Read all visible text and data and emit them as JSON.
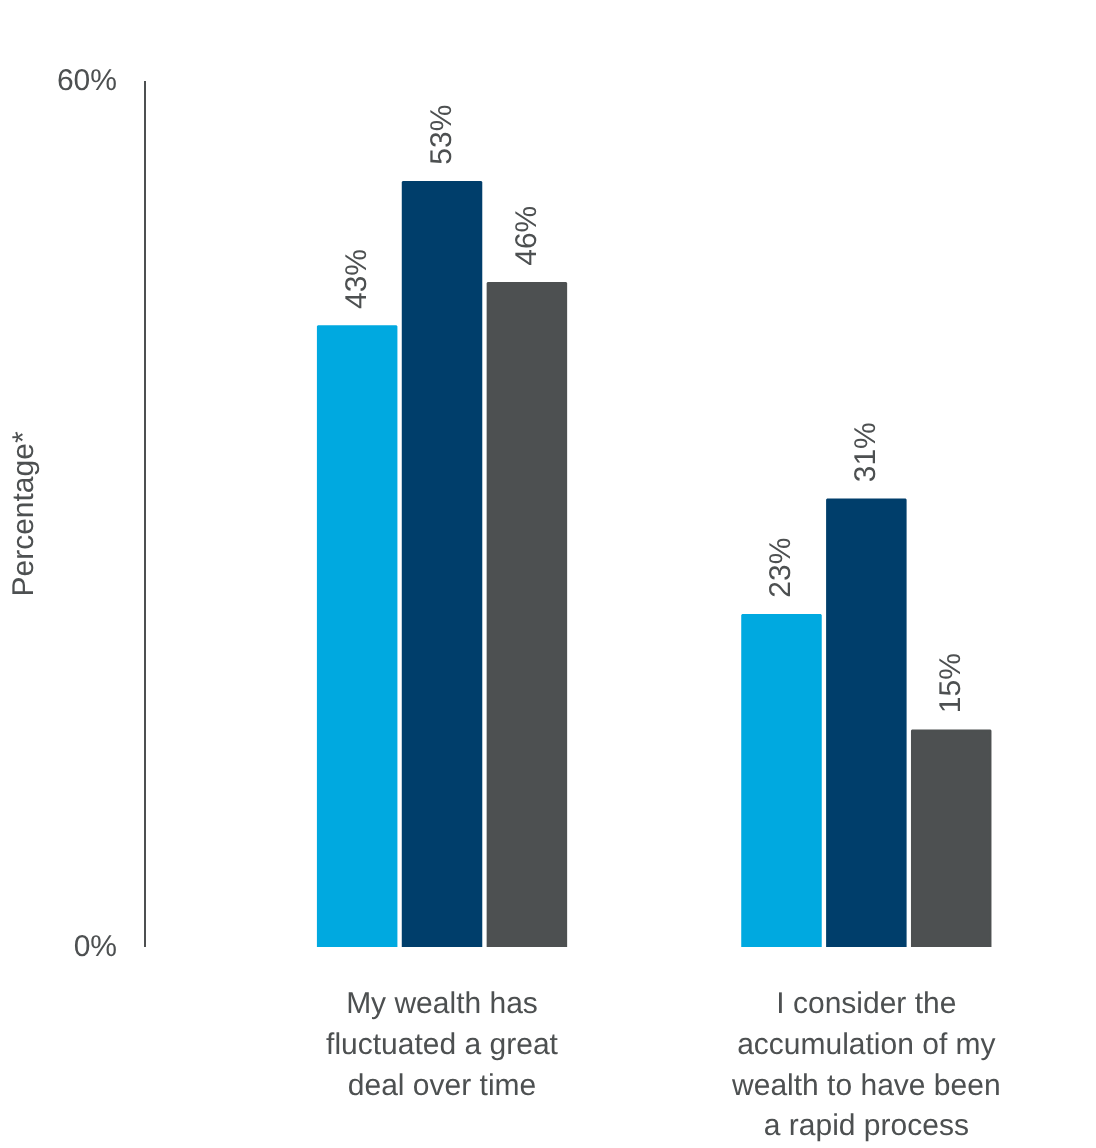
{
  "chart_data": {
    "type": "bar",
    "ylabel": "Percentage*",
    "categories": [
      "My wealth has fluctuated a great deal over time",
      "I consider the accumulation of my wealth to have been a rapid process"
    ],
    "series": [
      {
        "color": "#00a9e0",
        "values": [
          43,
          23
        ],
        "value_labels": [
          "43%",
          "23%"
        ]
      },
      {
        "color": "#003e6b",
        "values": [
          53,
          31
        ],
        "value_labels": [
          "53%",
          "31%"
        ]
      },
      {
        "color": "#4d5051",
        "values": [
          46,
          15
        ],
        "value_labels": [
          "46%",
          "15%"
        ]
      }
    ],
    "ylim": [
      0,
      60
    ],
    "yticks": [
      {
        "value": 0,
        "label": "0%"
      },
      {
        "value": 60,
        "label": "60%"
      }
    ],
    "grid": false
  }
}
